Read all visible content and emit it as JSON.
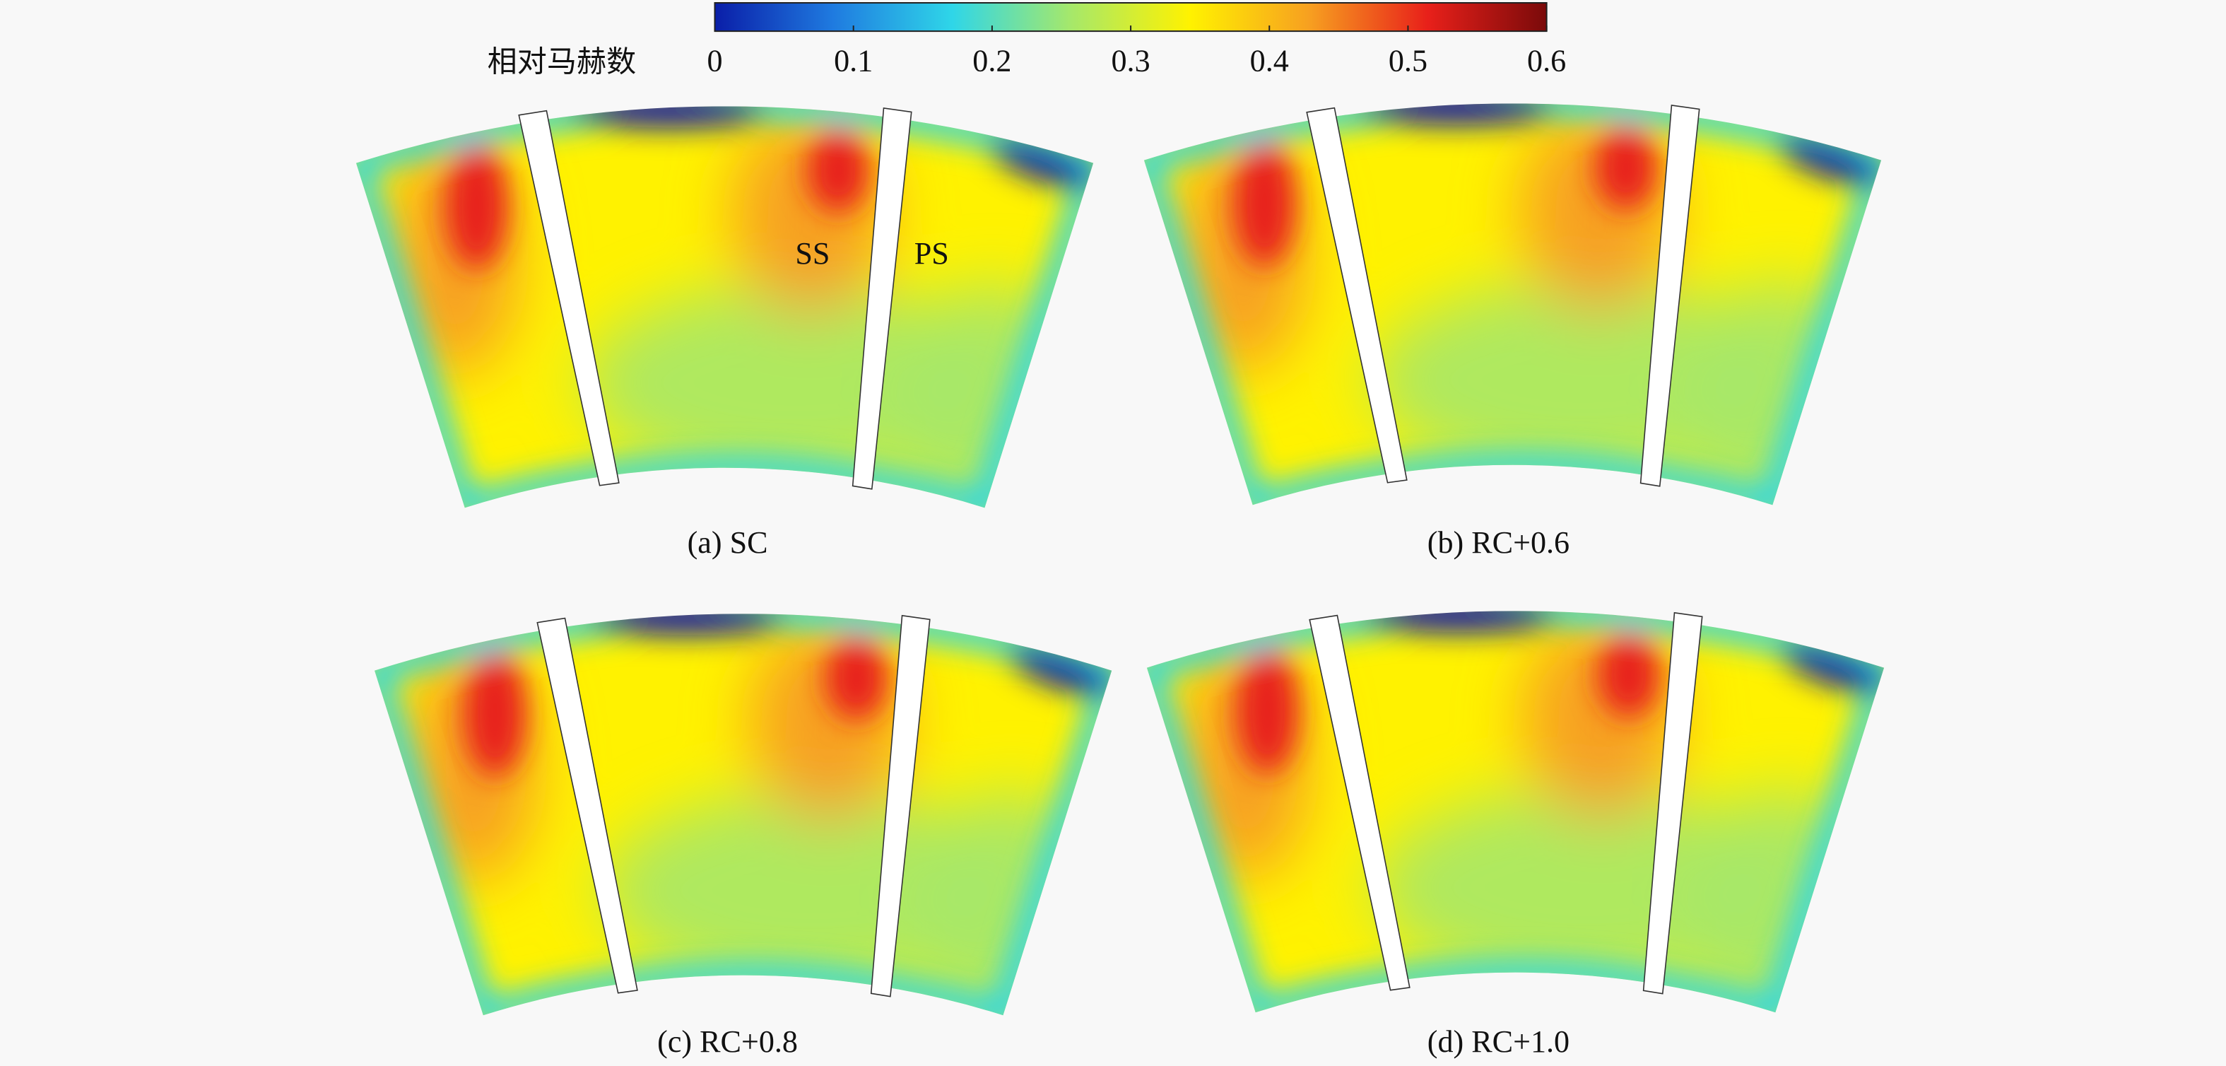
{
  "chart_data": {
    "type": "contour",
    "colorbar": {
      "label": "相对马赫数",
      "lim": [
        0,
        0.6
      ],
      "ticks": [
        0,
        0.1,
        0.2,
        0.3,
        0.4,
        0.5,
        0.6
      ],
      "colors": [
        "#0a1ea8",
        "#1f7be0",
        "#2fd6e8",
        "#a6e86a",
        "#fff200",
        "#f7a020",
        "#e8201a",
        "#7a0a0a"
      ]
    },
    "panels": [
      {
        "label": "(a) SC"
      },
      {
        "label": "(b) RC+0.6"
      },
      {
        "label": "(c) RC+0.8"
      },
      {
        "label": "(d) RC+1.0"
      }
    ],
    "annotations": [
      "SS",
      "PS"
    ]
  }
}
